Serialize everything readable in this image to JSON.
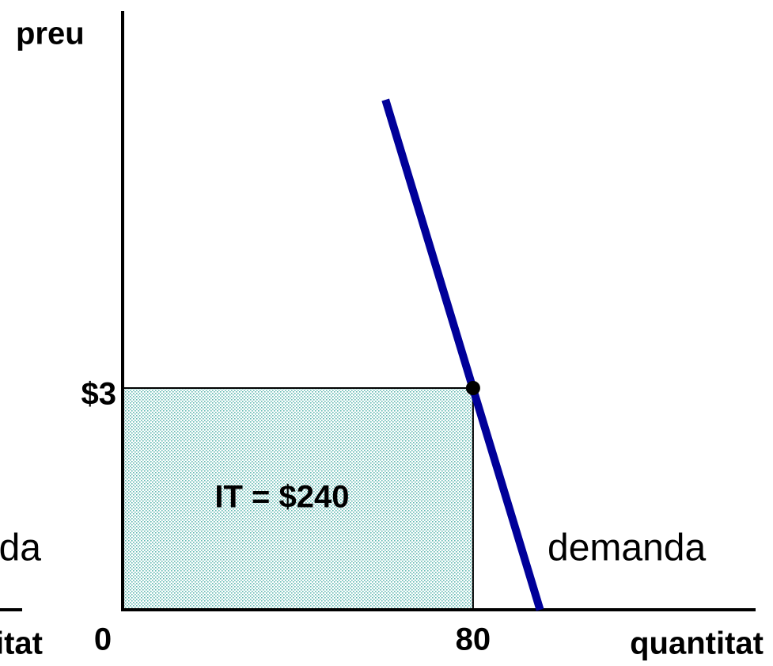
{
  "chart_data": {
    "type": "line",
    "x_label": "quantitat",
    "y_label": "preu",
    "xlim": [
      0,
      144.5
    ],
    "ylim": [
      0,
      8.1
    ],
    "xticks": [
      0,
      80
    ],
    "yticks": [
      {
        "value": 3,
        "label": "$3"
      }
    ],
    "series": [
      {
        "name": "demanda",
        "color": "#000099",
        "x": [
          60,
          95.3
        ],
        "values": [
          6.9,
          0
        ]
      }
    ],
    "point": {
      "x": 80,
      "y": 3
    },
    "area_label": "IT = $240",
    "area_color": "#5fb8b0",
    "fragments": [
      "da",
      "itat"
    ]
  }
}
